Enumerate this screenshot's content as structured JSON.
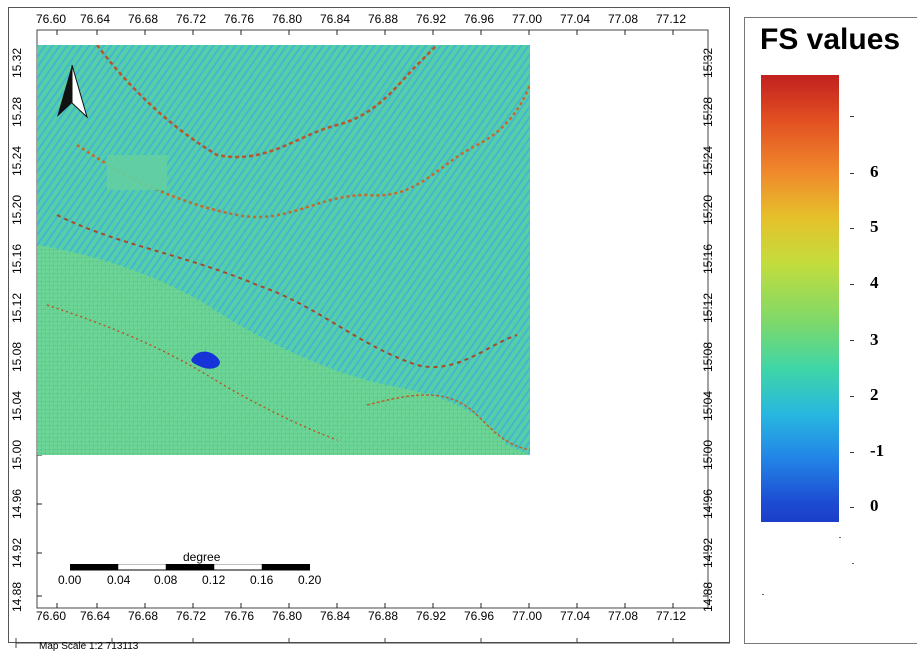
{
  "map": {
    "top_axis_labels": [
      "76.60",
      "76.64",
      "76.68",
      "76.72",
      "76.76",
      "76.80",
      "76.84",
      "76.88",
      "76.92",
      "76.96",
      "77.00",
      "77.04",
      "77.08",
      "77.12"
    ],
    "bottom_axis_labels": [
      "76.60",
      "76.64",
      "76.68",
      "76.72",
      "76.76",
      "76.80",
      "76.84",
      "76.88",
      "76.92",
      "76.96",
      "77.00",
      "77.04",
      "77.08",
      "77.12"
    ],
    "left_axis_labels": [
      "15.32",
      "15.28",
      "15.24",
      "15.20",
      "15.16",
      "15.12",
      "15.08",
      "15.04",
      "15.00",
      "14.96",
      "14.92",
      "14.88"
    ],
    "right_axis_labels": [
      "15.32",
      "15.28",
      "15.24",
      "15.20",
      "15.16",
      "15.12",
      "15.08",
      "15.04",
      "15.00",
      "14.96",
      "14.92",
      "14.88"
    ],
    "scalebar": {
      "unit": "degree",
      "labels": [
        "0.00",
        "0.04",
        "0.08",
        "0.12",
        "0.16",
        "0.20"
      ]
    },
    "map_scale_text": "Map Scale 1:2 713113",
    "north_arrow_icon": "north-arrow-icon",
    "colors": {
      "raster_base": "#55cfa0",
      "water_body": "#1533d6"
    }
  },
  "legend": {
    "title": "FS values",
    "labels": [
      "6",
      "5",
      "4",
      "3",
      "2",
      "-1",
      "0"
    ],
    "colors": {
      "top": "#c1201e",
      "bottom": "#1a3ec8"
    }
  }
}
